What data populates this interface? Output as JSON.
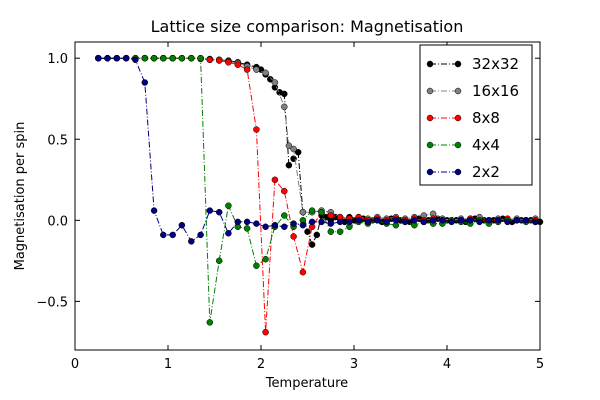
{
  "chart_data": {
    "type": "line",
    "title": "Lattice size comparison: Magnetisation",
    "xlabel": "Temperature",
    "ylabel": "Magnetisation per spin",
    "xlim": [
      0,
      5
    ],
    "ylim": [
      -0.8,
      1.1
    ],
    "xticks": [
      0,
      1,
      2,
      3,
      4,
      5
    ],
    "xtick_labels": [
      "0",
      "1",
      "2",
      "3",
      "4",
      "5"
    ],
    "yticks": [
      -0.5,
      0.0,
      0.5,
      1.0
    ],
    "ytick_labels": [
      "−0.5",
      "0.0",
      "0.5",
      "1.0"
    ],
    "grid": false,
    "legend_position": "top-right",
    "series": [
      {
        "name": "32x32",
        "color": "#000000",
        "x": [
          0.25,
          0.35,
          0.45,
          0.55,
          0.65,
          0.75,
          0.85,
          0.95,
          1.05,
          1.15,
          1.25,
          1.35,
          1.45,
          1.55,
          1.65,
          1.75,
          1.85,
          1.95,
          2.0,
          2.05,
          2.1,
          2.15,
          2.2,
          2.25,
          2.3,
          2.35,
          2.4,
          2.45,
          2.5,
          2.55,
          2.6,
          2.65,
          2.7,
          2.75,
          2.8,
          2.85,
          2.9,
          2.95,
          3.0,
          3.1,
          3.2,
          3.3,
          3.4,
          3.5,
          3.6,
          3.7,
          3.8,
          3.9,
          4.0,
          4.1,
          4.2,
          4.3,
          4.4,
          4.5,
          4.6,
          4.7,
          4.8,
          4.9,
          5.0
        ],
        "values": [
          1.0,
          1.0,
          1.0,
          1.0,
          1.0,
          1.0,
          1.0,
          1.0,
          1.0,
          1.0,
          1.0,
          1.0,
          0.995,
          0.99,
          0.985,
          0.975,
          0.96,
          0.945,
          0.93,
          0.9,
          0.87,
          0.82,
          0.79,
          0.78,
          0.34,
          0.38,
          0.42,
          0.05,
          -0.07,
          -0.15,
          -0.09,
          0.03,
          0.02,
          0.0,
          0.02,
          0.01,
          -0.01,
          0.02,
          0.0,
          0.01,
          0.0,
          -0.01,
          0.01,
          0.0,
          -0.01,
          0.01,
          0.0,
          0.01,
          0.0,
          0.0,
          -0.01,
          0.01,
          0.0,
          0.0,
          0.01,
          -0.01,
          0.0,
          0.0,
          -0.01
        ]
      },
      {
        "name": "16x16",
        "color": "#808080",
        "x": [
          0.25,
          0.35,
          0.45,
          0.55,
          0.65,
          0.75,
          0.85,
          0.95,
          1.05,
          1.15,
          1.25,
          1.35,
          1.45,
          1.55,
          1.65,
          1.75,
          1.85,
          1.95,
          2.05,
          2.15,
          2.25,
          2.3,
          2.35,
          2.45,
          2.55,
          2.65,
          2.75,
          2.85,
          2.95,
          3.05,
          3.15,
          3.25,
          3.35,
          3.45,
          3.55,
          3.65,
          3.75,
          3.85,
          3.95,
          4.05,
          4.15,
          4.25,
          4.35,
          4.45,
          4.55,
          4.65,
          4.75,
          4.85,
          4.95
        ],
        "values": [
          1.0,
          1.0,
          1.0,
          1.0,
          1.0,
          1.0,
          1.0,
          1.0,
          1.0,
          1.0,
          1.0,
          1.0,
          0.99,
          0.99,
          0.98,
          0.97,
          0.95,
          0.93,
          0.91,
          0.85,
          0.7,
          0.46,
          0.44,
          0.05,
          0.05,
          0.06,
          0.05,
          0.02,
          0.01,
          0.02,
          0.01,
          0.02,
          0.01,
          0.02,
          0.01,
          0.02,
          0.03,
          0.04,
          0.01,
          0.0,
          0.01,
          0.01,
          0.02,
          0.0,
          0.01,
          0.0,
          0.01,
          0.0,
          0.01
        ]
      },
      {
        "name": "8x8",
        "color": "#ff0000",
        "x": [
          0.25,
          0.35,
          0.45,
          0.55,
          0.65,
          0.75,
          0.85,
          0.95,
          1.05,
          1.15,
          1.25,
          1.35,
          1.45,
          1.55,
          1.65,
          1.75,
          1.85,
          1.95,
          2.05,
          2.15,
          2.25,
          2.35,
          2.45,
          2.55,
          2.65,
          2.75,
          2.85,
          2.95,
          3.05,
          3.15,
          3.25,
          3.35,
          3.45,
          3.55,
          3.65,
          3.75,
          3.85,
          3.95,
          4.05,
          4.15,
          4.25,
          4.35,
          4.45,
          4.55,
          4.65,
          4.75,
          4.85,
          4.95
        ],
        "values": [
          1.0,
          1.0,
          1.0,
          1.0,
          1.0,
          1.0,
          1.0,
          1.0,
          1.0,
          1.0,
          1.0,
          0.995,
          0.99,
          0.985,
          0.975,
          0.96,
          0.93,
          0.56,
          -0.69,
          0.25,
          0.18,
          -0.1,
          -0.32,
          -0.04,
          0.05,
          0.03,
          0.02,
          0.01,
          0.02,
          0.0,
          0.01,
          0.0,
          0.01,
          0.0,
          0.01,
          0.0,
          0.01,
          0.0,
          0.0,
          0.0,
          0.01,
          0.0,
          0.0,
          0.0,
          0.01,
          0.0,
          0.0,
          0.0
        ]
      },
      {
        "name": "4x4",
        "color": "#008000",
        "x": [
          0.25,
          0.35,
          0.45,
          0.55,
          0.65,
          0.75,
          0.85,
          0.95,
          1.05,
          1.15,
          1.25,
          1.35,
          1.45,
          1.55,
          1.65,
          1.75,
          1.85,
          1.95,
          2.05,
          2.15,
          2.25,
          2.35,
          2.45,
          2.55,
          2.65,
          2.75,
          2.85,
          2.95,
          3.05,
          3.15,
          3.25,
          3.35,
          3.45,
          3.55,
          3.65,
          3.75,
          3.85,
          3.95,
          4.05,
          4.15,
          4.25,
          4.35,
          4.45,
          4.55,
          4.65,
          4.75,
          4.85,
          4.95
        ],
        "values": [
          1.0,
          1.0,
          1.0,
          1.0,
          1.0,
          1.0,
          1.0,
          1.0,
          1.0,
          1.0,
          1.0,
          1.0,
          -0.63,
          -0.25,
          0.09,
          -0.04,
          -0.05,
          -0.28,
          -0.24,
          -0.04,
          0.03,
          -0.04,
          0.0,
          0.06,
          0.05,
          -0.07,
          -0.07,
          -0.04,
          -0.01,
          -0.02,
          0.0,
          -0.02,
          -0.03,
          -0.01,
          -0.03,
          -0.01,
          -0.02,
          -0.02,
          0.0,
          -0.01,
          -0.02,
          0.0,
          -0.02,
          -0.01,
          0.0,
          0.0,
          -0.01,
          -0.01
        ]
      },
      {
        "name": "2x2",
        "color": "#000080",
        "x": [
          0.25,
          0.35,
          0.45,
          0.55,
          0.65,
          0.75,
          0.85,
          0.95,
          1.05,
          1.15,
          1.25,
          1.35,
          1.45,
          1.55,
          1.65,
          1.75,
          1.85,
          1.95,
          2.05,
          2.15,
          2.25,
          2.35,
          2.45,
          2.55,
          2.65,
          2.75,
          2.85,
          2.95,
          3.05,
          3.15,
          3.25,
          3.35,
          3.45,
          3.55,
          3.65,
          3.75,
          3.85,
          3.95,
          4.05,
          4.15,
          4.25,
          4.35,
          4.45,
          4.55,
          4.65,
          4.75,
          4.85,
          4.95
        ],
        "values": [
          1.0,
          1.0,
          1.0,
          1.0,
          0.99,
          0.85,
          0.06,
          -0.09,
          -0.09,
          -0.03,
          -0.13,
          -0.09,
          0.06,
          0.05,
          -0.08,
          -0.01,
          -0.01,
          -0.02,
          -0.04,
          -0.03,
          -0.04,
          -0.02,
          -0.03,
          -0.01,
          -0.01,
          -0.02,
          -0.01,
          -0.01,
          0.0,
          -0.01,
          0.0,
          -0.01,
          0.0,
          -0.01,
          0.0,
          -0.01,
          0.0,
          0.0,
          -0.01,
          0.0,
          0.0,
          -0.01,
          0.0,
          0.0,
          -0.01,
          0.0,
          0.0,
          -0.01
        ]
      }
    ]
  }
}
